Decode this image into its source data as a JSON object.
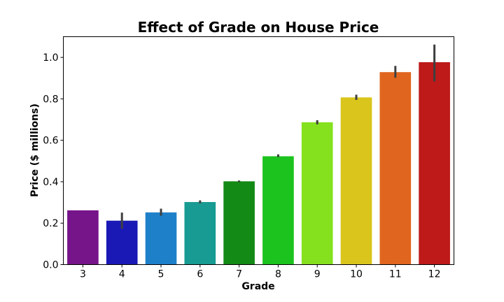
{
  "chart_data": {
    "type": "bar",
    "title": "Effect of Grade on House Price",
    "xlabel": "Grade",
    "ylabel": "Price ($ millions)",
    "categories": [
      "3",
      "4",
      "5",
      "6",
      "7",
      "8",
      "9",
      "10",
      "11",
      "12"
    ],
    "values": [
      0.262,
      0.212,
      0.252,
      0.302,
      0.402,
      0.523,
      0.687,
      0.807,
      0.929,
      0.977
    ],
    "error_bars": [
      [
        0.262,
        0.262
      ],
      [
        0.173,
        0.251
      ],
      [
        0.236,
        0.27
      ],
      [
        0.296,
        0.31
      ],
      [
        0.398,
        0.406
      ],
      [
        0.519,
        0.532
      ],
      [
        0.677,
        0.697
      ],
      [
        0.795,
        0.82
      ],
      [
        0.902,
        0.959
      ],
      [
        0.884,
        1.062
      ]
    ],
    "colors": [
      "#76148a",
      "#1a19b6",
      "#1f80ca",
      "#189b92",
      "#148a16",
      "#1cc31e",
      "#85e11e",
      "#d9c51b",
      "#e0661f",
      "#be1a1a"
    ],
    "ylim": [
      0,
      1.1
    ],
    "yticks": [
      "0.0",
      "0.2",
      "0.4",
      "0.6",
      "0.8",
      "1.0"
    ],
    "grid": false,
    "legend": "none"
  }
}
